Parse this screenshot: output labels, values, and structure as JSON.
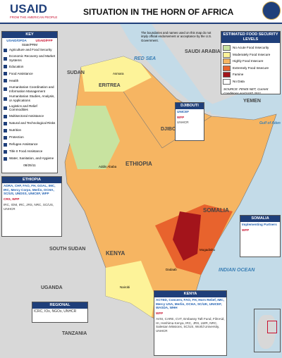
{
  "header": {
    "agency": "USAID",
    "tagline": "FROM THE AMERICAN PEOPLE",
    "title": "SITUATION IN THE HORN OF AFRICA"
  },
  "disclaimer": "The boundaries and names used on this map do not imply official endorsement or acceptance by the U.S. Government.",
  "key": {
    "title": "KEY",
    "ofda": "USAID/OFDA",
    "ffp": "USAID/FFP",
    "prm": "State/PRM",
    "items": [
      "Agriculture and Food Security",
      "Economic Recovery and Market Systems",
      "Education",
      "Food Assistance",
      "Health",
      "Humanitarian Coordination and Information Management",
      "Humanitarian Studies, Analysis, or Applications",
      "Logistics and Relief Commodities",
      "Multisectoral Assistance",
      "Natural and Technological Risks",
      "Nutrition",
      "Protection",
      "Refugee Assistance",
      "Title II Food Assistance",
      "Water, Sanitation, and Hygiene"
    ],
    "date": "08/25/11"
  },
  "legend": {
    "title": "ESTIMATED FOOD SECURITY LEVELS",
    "levels": [
      {
        "label": "No Acute Food Insecurity",
        "color": "#c8e3a0"
      },
      {
        "label": "Moderately Food Insecure",
        "color": "#fdf399"
      },
      {
        "label": "Highly Food Insecure",
        "color": "#f6b562"
      },
      {
        "label": "Extremely Food Insecure",
        "color": "#e8632d"
      },
      {
        "label": "Famine",
        "color": "#a3141b"
      },
      {
        "label": "No Data",
        "color": "#ffffff"
      }
    ],
    "source": "SOURCE: FEWS NET, Current Conditions AUGUST 2011"
  },
  "map_labels": [
    "RED SEA",
    "SAUDI ARABIA",
    "YEMEN",
    "SUDAN",
    "ERITREA",
    "DJIBOUTI",
    "ETHIOPIA",
    "SOMALIA",
    "SOUTH SUDAN",
    "UGANDA",
    "KENYA",
    "TANZANIA",
    "INDIAN OCEAN",
    "Gulf of Aden",
    "Addis Ababa",
    "Djibouti",
    "Mogadishu",
    "Nairobi",
    "Asmara",
    "Dadaab"
  ],
  "djibouti": {
    "title": "DJIBOUTI",
    "ofda": "UNICEF",
    "ffp": "WFP",
    "prm": "UNHCR"
  },
  "ethiopia": {
    "title": "ETHIOPIA",
    "ofda": "ADRA, CHF, FAO, FH, GOAL, IMC, IRC, Mercy Corps, Merlin, OCHA, SC/US, UNDSS, UNICEF, WFP",
    "ffp": "CRS, WFP",
    "prm": "IRC, IOM, IRC, JRS, NRC, SC/US, UNHCR"
  },
  "somalia": {
    "title": "SOMALIA",
    "ofda": "Implementing Partners",
    "ffp": "WFP"
  },
  "kenya": {
    "title": "KENYA",
    "ofda": "ACTED, Concern, FAO, FH, Horn Relief, IMC, Mercy USA, Merlin, OCHA, SC/UK, UNICEF, WASDA, WHH",
    "ffp": "WFP",
    "prm": "AVSI, CARE, CVT, Embassy Taft Fund, FilmAid, HI, Heshima Kenya, IRC, JRS, LWR, NRC, Salesian Missions, SC/US, World University, UNHCR"
  },
  "regional": {
    "title": "REGIONAL",
    "prm": "ICRC, IOs, NGOs, UNHCR"
  }
}
